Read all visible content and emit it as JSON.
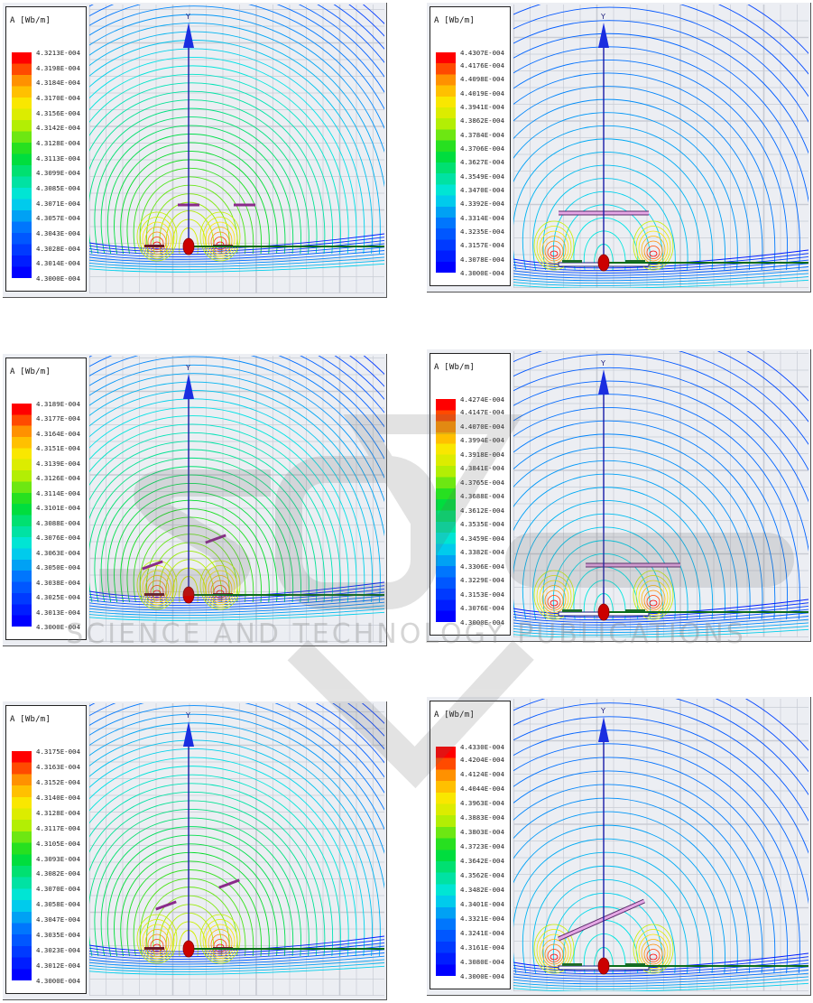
{
  "panels": [
    {
      "id": "p1",
      "legend_title": "A [Wb/m]",
      "legend_values": [
        "4.3213E-004",
        "4.3198E-004",
        "4.3184E-004",
        "4.3170E-004",
        "4.3156E-004",
        "4.3142E-004",
        "4.3128E-004",
        "4.3113E-004",
        "4.3099E-004",
        "4.3085E-004",
        "4.3071E-004",
        "4.3057E-004",
        "4.3043E-004",
        "4.3028E-004",
        "4.3014E-004",
        "4.3000E-004"
      ],
      "axis_label": "Y",
      "configuration": "three-coils-horizontal"
    },
    {
      "id": "p2",
      "legend_title": "A [Wb/m]",
      "legend_values": [
        "4.4307E-004",
        "4.4176E-004",
        "4.4098E-004",
        "4.4019E-004",
        "4.3941E-004",
        "4.3862E-004",
        "4.3784E-004",
        "4.3706E-004",
        "4.3627E-004",
        "4.3549E-004",
        "4.3470E-004",
        "4.3392E-004",
        "4.3314E-004",
        "4.3235E-004",
        "4.3157E-004",
        "4.3078E-004",
        "4.3000E-004"
      ],
      "axis_label": "Y",
      "configuration": "plates-parallel"
    },
    {
      "id": "p3",
      "legend_title": "A [Wb/m]",
      "legend_values": [
        "4.3189E-004",
        "4.3177E-004",
        "4.3164E-004",
        "4.3151E-004",
        "4.3139E-004",
        "4.3126E-004",
        "4.3114E-004",
        "4.3101E-004",
        "4.3088E-004",
        "4.3076E-004",
        "4.3063E-004",
        "4.3050E-004",
        "4.3038E-004",
        "4.3025E-004",
        "4.3013E-004",
        "4.3000E-004"
      ],
      "axis_label": "Y",
      "configuration": "three-coils-tilted"
    },
    {
      "id": "p4",
      "legend_title": "A [Wb/m]",
      "legend_values": [
        "4.4274E-004",
        "4.4147E-004",
        "4.4070E-004",
        "4.3994E-004",
        "4.3918E-004",
        "4.3841E-004",
        "4.3765E-004",
        "4.3688E-004",
        "4.3612E-004",
        "4.3535E-004",
        "4.3459E-004",
        "4.3382E-004",
        "4.3306E-004",
        "4.3229E-004",
        "4.3153E-004",
        "4.3076E-004",
        "4.3000E-004"
      ],
      "axis_label": "Y",
      "configuration": "plates-offset"
    },
    {
      "id": "p5",
      "legend_title": "A [Wb/m]",
      "legend_values": [
        "4.3175E-004",
        "4.3163E-004",
        "4.3152E-004",
        "4.3140E-004",
        "4.3128E-004",
        "4.3117E-004",
        "4.3105E-004",
        "4.3093E-004",
        "4.3082E-004",
        "4.3070E-004",
        "4.3058E-004",
        "4.3047E-004",
        "4.3035E-004",
        "4.3023E-004",
        "4.3012E-004",
        "4.3000E-004"
      ],
      "axis_label": "Y",
      "configuration": "three-coils-tilted-high"
    },
    {
      "id": "p6",
      "legend_title": "A [Wb/m]",
      "legend_values": [
        "4.4330E-004",
        "4.4204E-004",
        "4.4124E-004",
        "4.4044E-004",
        "4.3963E-004",
        "4.3883E-004",
        "4.3803E-004",
        "4.3723E-004",
        "4.3642E-004",
        "4.3562E-004",
        "4.3482E-004",
        "4.3401E-004",
        "4.3321E-004",
        "4.3241E-004",
        "4.3161E-004",
        "4.3080E-004",
        "4.3000E-004"
      ],
      "axis_label": "Y",
      "configuration": "plates-tilted"
    }
  ],
  "watermark": {
    "logo_text": "SCITEPRESS",
    "subtitle": "SCIENCE AND TECHNOLOGY PUBLICATIONS"
  },
  "colors": {
    "background": "#eceef3",
    "grid": "#c9ccd4",
    "axis_y": "#1a1aa8",
    "axis_x": "#0b6b1a",
    "origin": "#cc0000",
    "plate": "#e6a8e6",
    "coil": "#3344aa"
  }
}
